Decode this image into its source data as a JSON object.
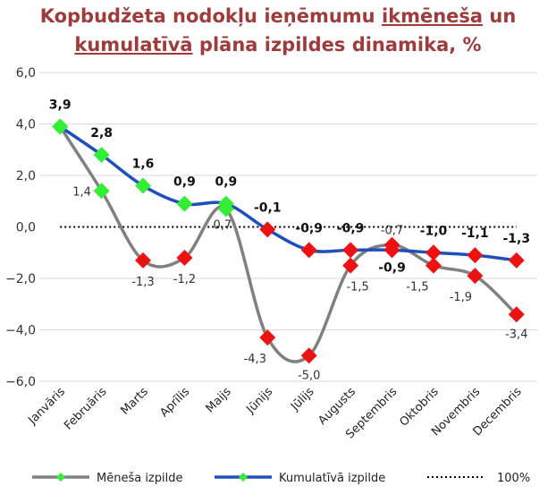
{
  "title": {
    "part1": "Kopbudžeta nodokļu ieņēmumu ",
    "part2": "ikmēneša",
    "part3": " un ",
    "part4": "kumulatīvā",
    "part5": " plāna izpildes dinamika, %"
  },
  "chart_data": {
    "type": "line",
    "title": "Kopbudžeta nodokļu ieņēmumu ikmēneša un kumulatīvā plāna izpildes dinamika, %",
    "categories": [
      "Janvāris",
      "Februāris",
      "Marts",
      "Aprīlis",
      "Maijs",
      "Jūnijs",
      "Jūlijs",
      "Augusts",
      "Septembris",
      "Oktobris",
      "Novembris",
      "Decembris"
    ],
    "ylim": [
      -6,
      6
    ],
    "yticks": [
      -6,
      -4,
      -2,
      0,
      2,
      4,
      6
    ],
    "ytick_labels": [
      "−6,0",
      "−4,0",
      "−2,0",
      "0,0",
      "2,0",
      "4,0",
      "6,0"
    ],
    "reference_line": {
      "name": "100%",
      "value": 0
    },
    "series": [
      {
        "name": "Mēneša izpilde",
        "line_color": "#808080",
        "values": [
          3.9,
          1.4,
          -1.3,
          -1.2,
          0.7,
          -4.3,
          -5.0,
          -1.5,
          -0.7,
          -1.5,
          -1.9,
          -3.4
        ],
        "labels": [
          "",
          "1,4",
          "-1,3",
          "-1,2",
          "0,7",
          "-4,3",
          "-5,0",
          "-1,5",
          "-0,7",
          "-1,5",
          "-1,9",
          "-3,4"
        ]
      },
      {
        "name": "Kumulatīvā izpilde",
        "line_color": "#1f4fbf",
        "values": [
          3.9,
          2.8,
          1.6,
          0.9,
          0.9,
          -0.1,
          -0.9,
          -0.9,
          -0.9,
          -1.0,
          -1.1,
          -1.3
        ],
        "labels": [
          "3,9",
          "2,8",
          "1,6",
          "0,9",
          "0,9",
          "-0,1",
          "-0,9",
          "-0,9",
          "-0,9",
          "-1,0",
          "-1,1",
          "-1,3"
        ]
      }
    ],
    "marker_colors": {
      "positive": "#33ee33",
      "negative": "#ee1111"
    },
    "legend": {
      "position": "bottom",
      "items": [
        "Mēneša izpilde",
        "Kumulatīvā izpilde",
        "100%"
      ]
    },
    "grid": "horizontal"
  }
}
